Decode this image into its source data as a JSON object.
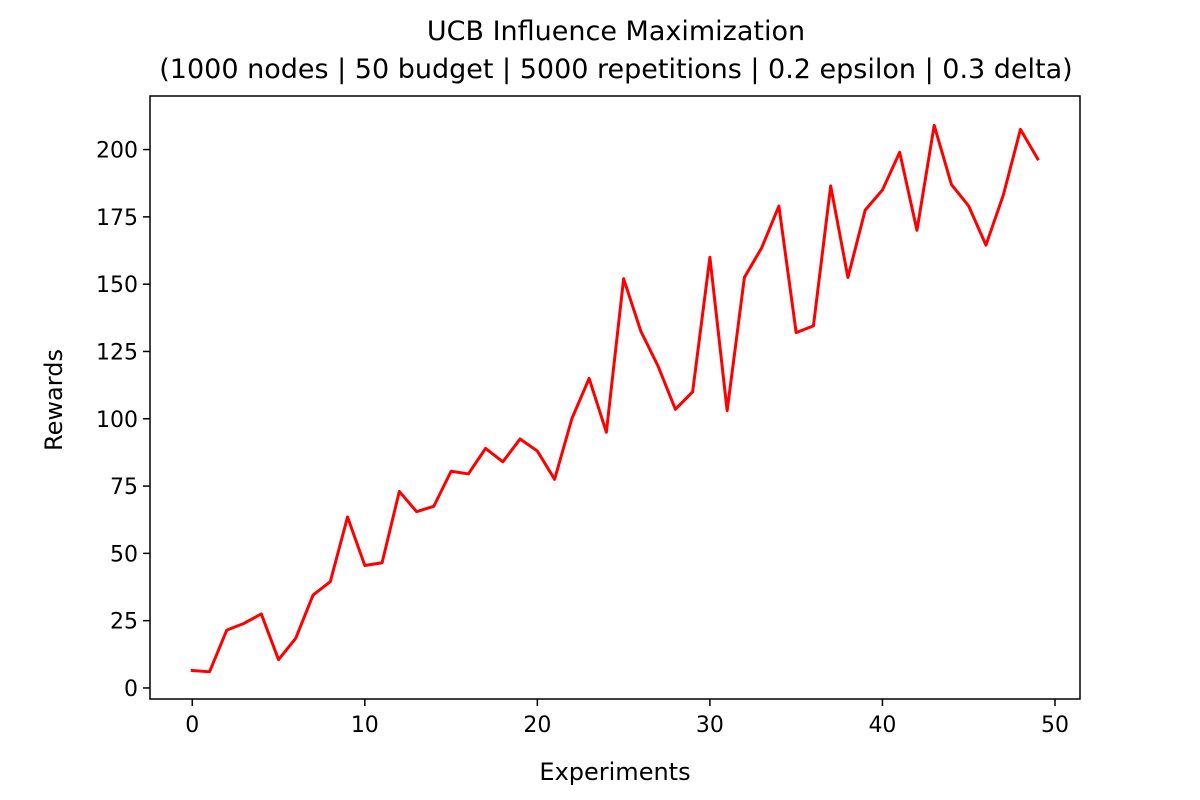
{
  "chart_data": {
    "type": "line",
    "title": "UCB Influence Maximization",
    "subtitle": "(1000 nodes | 50 budget | 5000 repetitions | 0.2 epsilon | 0.3 delta)",
    "xlabel": "Experiments",
    "ylabel": "Rewards",
    "xlim": [
      -2.45,
      51.45
    ],
    "ylim": [
      -4.1,
      219.9
    ],
    "xticks": [
      0,
      10,
      20,
      30,
      40,
      50
    ],
    "yticks": [
      0,
      25,
      50,
      75,
      100,
      125,
      150,
      175,
      200
    ],
    "grid": false,
    "series": [
      {
        "color": "#ff0000",
        "x": [
          0,
          1,
          2,
          3,
          4,
          5,
          6,
          7,
          8,
          9,
          10,
          11,
          12,
          13,
          14,
          15,
          16,
          17,
          18,
          19,
          20,
          21,
          22,
          23,
          24,
          25,
          26,
          27,
          28,
          29,
          30,
          31,
          32,
          33,
          34,
          35,
          36,
          37,
          38,
          39,
          40,
          41,
          42,
          43,
          44,
          45,
          46,
          47,
          48,
          49
        ],
        "values": [
          6.5,
          6,
          21.5,
          24,
          27.5,
          10.5,
          18.5,
          34.5,
          39.5,
          63.5,
          45.5,
          46.5,
          73,
          65.5,
          67.5,
          80.5,
          79.5,
          89,
          84,
          92.5,
          88,
          77.5,
          100,
          115,
          95,
          152,
          132.5,
          119.5,
          103.5,
          110,
          160,
          103,
          152.5,
          163.5,
          179,
          132,
          134.5,
          186.5,
          152.5,
          177.5,
          185,
          199,
          170,
          209,
          187,
          179,
          164.5,
          183,
          207.5,
          196.5
        ]
      }
    ]
  }
}
